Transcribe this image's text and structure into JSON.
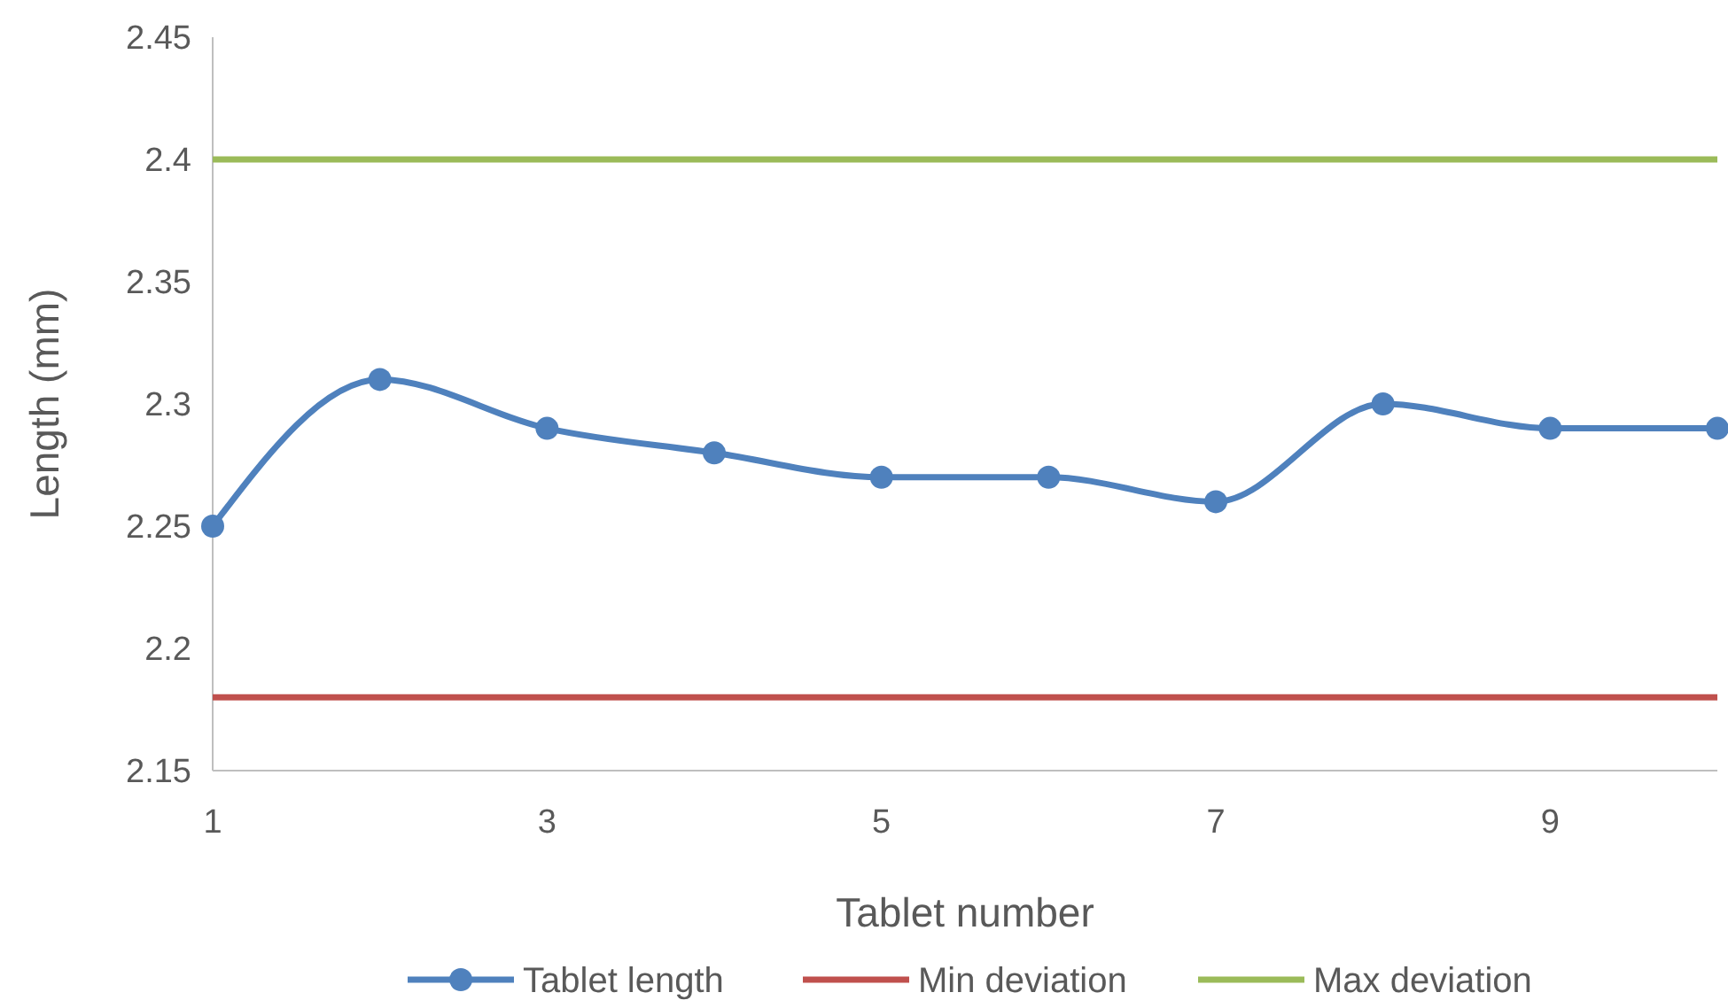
{
  "chart_data": {
    "type": "line",
    "xlabel": "Tablet number",
    "ylabel": "Length (mm)",
    "x": [
      1,
      2,
      3,
      4,
      5,
      6,
      7,
      8,
      9,
      10
    ],
    "series": [
      {
        "name": "Tablet length",
        "color": "#4f81bd",
        "values": [
          2.25,
          2.31,
          2.29,
          2.28,
          2.27,
          2.27,
          2.26,
          2.3,
          2.29,
          2.29
        ],
        "marker": "circle"
      },
      {
        "name": "Min deviation",
        "color": "#c0504d",
        "values": [
          2.18,
          2.18,
          2.18,
          2.18,
          2.18,
          2.18,
          2.18,
          2.18,
          2.18,
          2.18
        ],
        "marker": "none"
      },
      {
        "name": "Max deviation",
        "color": "#9bbb59",
        "values": [
          2.4,
          2.4,
          2.4,
          2.4,
          2.4,
          2.4,
          2.4,
          2.4,
          2.4,
          2.4
        ],
        "marker": "none"
      }
    ],
    "xlim": [
      1,
      10
    ],
    "xticks": [
      1,
      3,
      5,
      7,
      9
    ],
    "ylim": [
      2.15,
      2.45
    ],
    "yticks": [
      2.15,
      {
        "value": 2.2,
        "label": "2.2"
      },
      2.25,
      {
        "value": 2.3,
        "label": "2.3"
      },
      2.35,
      {
        "value": 2.4,
        "label": "2.4"
      },
      2.45
    ],
    "grid": false,
    "legend": "bottom",
    "line_style": "solid"
  }
}
